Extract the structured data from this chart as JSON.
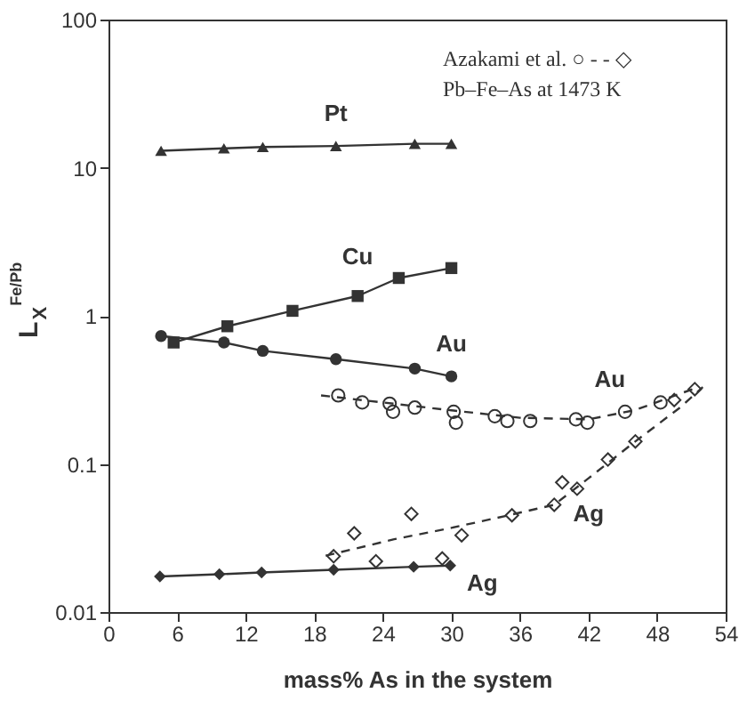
{
  "chart_data": {
    "type": "line",
    "xlabel": "mass% As in the system",
    "ylabel": "L$_{X}$$^{Fe/Pb}$",
    "log": "y",
    "xlim": [
      0,
      54
    ],
    "xticks": [
      0,
      6,
      12,
      18,
      24,
      30,
      36,
      42,
      48,
      54
    ],
    "ylim": [
      0.01,
      100
    ],
    "yticks": [
      0.01,
      0.1,
      1,
      10,
      100
    ],
    "grid": false,
    "series": [
      {
        "name": "Pt",
        "type": "line",
        "marker": "triangle",
        "line_style": "solid",
        "color": "#333333",
        "x": [
          4.6,
          10.1,
          13.5,
          19.9,
          26.8,
          30
        ],
        "values": [
          13,
          13.5,
          13.8,
          14,
          14.5,
          14.5
        ]
      },
      {
        "name": "Cu",
        "type": "line",
        "marker": "square",
        "line_style": "solid",
        "color": "#333333",
        "x": [
          5.7,
          10.4,
          16.1,
          21.8,
          25.4,
          30
        ],
        "values": [
          0.66,
          0.85,
          1.08,
          1.36,
          1.8,
          2.1
        ]
      },
      {
        "name": "Au",
        "type": "line",
        "marker": "circle",
        "line_style": "solid",
        "color": "#333333",
        "x": [
          4.6,
          10.1,
          13.5,
          19.9,
          26.8,
          30
        ],
        "values": [
          0.73,
          0.66,
          0.58,
          0.51,
          0.44,
          0.39
        ]
      },
      {
        "name": "Ag",
        "type": "line",
        "marker": "diamond",
        "line_style": "solid",
        "color": "#333333",
        "x": [
          4.5,
          9.7,
          13.4,
          19.7,
          26.7,
          29.9
        ],
        "values": [
          0.0174,
          0.018,
          0.0185,
          0.0193,
          0.0202,
          0.0206
        ]
      },
      {
        "type": "scatter",
        "marker": "circle",
        "color": "#333333",
        "x": [
          20.1,
          22.2,
          24.6,
          24.9,
          26.8,
          30.2,
          30.4,
          33.8,
          34.9,
          36.9,
          40.9,
          41.9,
          45.2,
          48.3
        ],
        "values": [
          0.29,
          0.26,
          0.255,
          0.225,
          0.24,
          0.225,
          0.19,
          0.21,
          0.195,
          0.195,
          0.2,
          0.19,
          0.225,
          0.26
        ]
      },
      {
        "name": "Au",
        "type": "line",
        "marker": "none",
        "line_style": "dashed",
        "color": "#333333",
        "x": [
          18.6,
          24,
          30,
          36,
          42,
          46,
          51.6
        ],
        "values": [
          0.29,
          0.26,
          0.23,
          0.205,
          0.2,
          0.23,
          0.33
        ]
      },
      {
        "type": "scatter",
        "marker": "diamond",
        "color": "#333333",
        "x": [
          19.7,
          21.5,
          23.4,
          26.5,
          29.2,
          30.9,
          35.3,
          39,
          39.7,
          41,
          43.7,
          46.1,
          49.5,
          51.3
        ],
        "values": [
          0.0238,
          0.034,
          0.022,
          0.046,
          0.023,
          0.033,
          0.045,
          0.053,
          0.075,
          0.068,
          0.107,
          0.142,
          0.27,
          0.32
        ]
      },
      {
        "name": "Ag",
        "type": "line",
        "marker": "none",
        "line_style": "dashed",
        "color": "#333333",
        "x": [
          19,
          25,
          30,
          35,
          39,
          42,
          46,
          50,
          52
        ],
        "values": [
          0.024,
          0.031,
          0.037,
          0.045,
          0.053,
          0.08,
          0.14,
          0.24,
          0.33
        ]
      }
    ],
    "annotations": [
      "Azakami et al.    ○ - - ◇",
      "Pb–Fe–As at 1473 K"
    ]
  }
}
